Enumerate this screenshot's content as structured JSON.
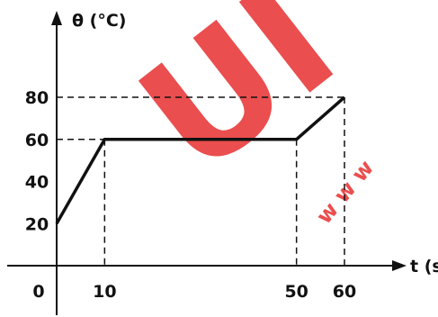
{
  "chart_data": {
    "type": "line",
    "xlabel": "t (s)",
    "ylabel": "θ (°C)",
    "origin_label": "0",
    "xticks": [
      10,
      50,
      60
    ],
    "yticks": [
      20,
      40,
      60,
      80
    ],
    "xlim": [
      0,
      60
    ],
    "ylim": [
      0,
      80
    ],
    "grid": false,
    "series": [
      {
        "x": [
          0,
          10,
          50,
          60
        ],
        "y": [
          20,
          60,
          60,
          80
        ]
      }
    ],
    "guide_lines": [
      {
        "x": 10,
        "y": 60
      },
      {
        "x": 50,
        "y": 60
      },
      {
        "x": 60,
        "y": 80
      }
    ]
  },
  "watermark": {
    "text_large": "UI",
    "text_small": "w w w",
    "color": "#e83b3b"
  },
  "colors": {
    "line": "#111111",
    "axis": "#111111"
  }
}
